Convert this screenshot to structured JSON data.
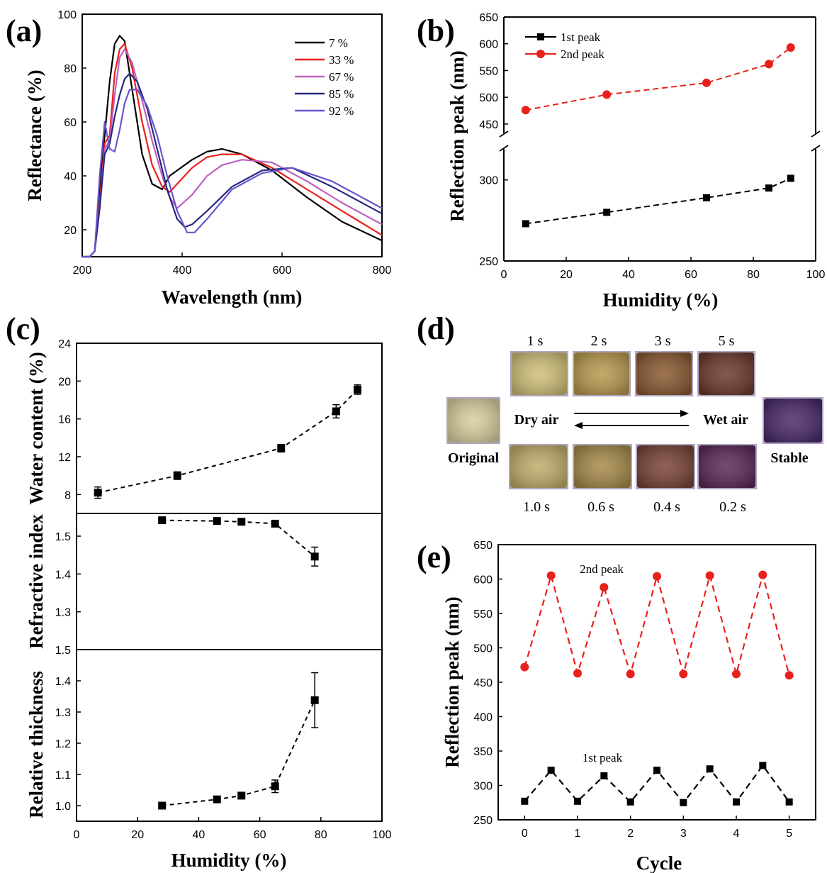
{
  "labels": {
    "a": "(a)",
    "b": "(b)",
    "c": "(c)",
    "d": "(d)",
    "e": "(e)"
  },
  "chart_data": [
    {
      "id": "a",
      "type": "line",
      "xlabel": "Wavelength (nm)",
      "ylabel": "Reflectance (%)",
      "xlim": [
        200,
        800
      ],
      "ylim": [
        10,
        100
      ],
      "xticks": [
        200,
        400,
        600,
        800
      ],
      "yticks": [
        20,
        40,
        60,
        80,
        100
      ],
      "legend_position": "top-right",
      "series": [
        {
          "name": "7 %",
          "color": "#000000",
          "x": [
            200,
            215,
            225,
            235,
            245,
            255,
            265,
            275,
            285,
            300,
            320,
            340,
            360,
            375,
            390,
            420,
            450,
            480,
            520,
            580,
            650,
            720,
            800
          ],
          "y": [
            10,
            10,
            12,
            35,
            55,
            75,
            89,
            92,
            90,
            72,
            48,
            37,
            35,
            40,
            42,
            46,
            49,
            50,
            48,
            42,
            32,
            23,
            16
          ]
        },
        {
          "name": "33 %",
          "color": "#e8211c",
          "x": [
            200,
            215,
            225,
            235,
            245,
            255,
            265,
            275,
            285,
            300,
            320,
            340,
            360,
            375,
            390,
            420,
            450,
            480,
            520,
            580,
            650,
            720,
            800
          ],
          "y": [
            10,
            10,
            12,
            30,
            52,
            55,
            78,
            87,
            89,
            80,
            60,
            44,
            36,
            34,
            37,
            43,
            47,
            48,
            48,
            43,
            35,
            27,
            18
          ]
        },
        {
          "name": "67 %",
          "color": "#c060c0",
          "x": [
            200,
            215,
            225,
            235,
            245,
            255,
            265,
            275,
            285,
            300,
            320,
            340,
            360,
            375,
            390,
            420,
            450,
            480,
            520,
            580,
            650,
            720,
            800
          ],
          "y": [
            10,
            10,
            12,
            28,
            50,
            53,
            70,
            84,
            87,
            82,
            68,
            53,
            40,
            32,
            28,
            33,
            40,
            44,
            46,
            45,
            38,
            30,
            22
          ]
        },
        {
          "name": "85 %",
          "color": "#232a80",
          "x": [
            200,
            215,
            225,
            235,
            245,
            255,
            265,
            275,
            285,
            295,
            310,
            330,
            350,
            370,
            390,
            405,
            420,
            450,
            500,
            560,
            620,
            700,
            800
          ],
          "y": [
            10,
            10,
            12,
            28,
            48,
            52,
            62,
            70,
            76,
            78,
            75,
            65,
            50,
            35,
            24,
            21,
            22,
            27,
            36,
            42,
            43,
            36,
            26
          ]
        },
        {
          "name": "92 %",
          "color": "#6a55c8",
          "x": [
            200,
            215,
            225,
            235,
            245,
            255,
            265,
            275,
            285,
            295,
            310,
            330,
            350,
            370,
            390,
            410,
            425,
            450,
            500,
            560,
            620,
            700,
            800
          ],
          "y": [
            10,
            10,
            12,
            40,
            60,
            50,
            49,
            57,
            67,
            72,
            72,
            66,
            55,
            40,
            27,
            19,
            19,
            24,
            35,
            41,
            43,
            38,
            28
          ]
        }
      ]
    },
    {
      "id": "b",
      "type": "line",
      "xlabel": "Humidity (%)",
      "ylabel": "Reflection peak (nm)",
      "xlim": [
        0,
        100
      ],
      "xticks": [
        0,
        20,
        40,
        60,
        80,
        100
      ],
      "ylim_lower": [
        250,
        320
      ],
      "yticks_lower": [
        250,
        300
      ],
      "ylim_upper": [
        430,
        650
      ],
      "yticks_upper": [
        450,
        500,
        550,
        600,
        650
      ],
      "legend_position": "top-left",
      "series": [
        {
          "name": "1st peak",
          "color": "#000000",
          "marker": "square",
          "x": [
            7,
            33,
            65,
            85,
            92
          ],
          "y": [
            273,
            280,
            289,
            295,
            301
          ]
        },
        {
          "name": "2nd peak",
          "color": "#e8211c",
          "marker": "circle",
          "x": [
            7,
            33,
            65,
            85,
            92
          ],
          "y": [
            476,
            505,
            527,
            562,
            593
          ]
        }
      ]
    },
    {
      "id": "c",
      "type": "scatter",
      "xlabel": "Humidity (%)",
      "xlim": [
        0,
        100
      ],
      "xticks": [
        0,
        20,
        40,
        60,
        80,
        100
      ],
      "subplots": [
        {
          "ylabel": "Water content (%)",
          "ylim": [
            6,
            24
          ],
          "yticks": [
            8,
            12,
            16,
            20,
            24
          ],
          "x": [
            7,
            33,
            67,
            85,
            92
          ],
          "y": [
            8.2,
            10.0,
            12.9,
            16.8,
            19.1
          ],
          "err": [
            0.6,
            0.4,
            0.4,
            0.7,
            0.5
          ]
        },
        {
          "ylabel": "Refractive index",
          "ylim": [
            1.2,
            1.56
          ],
          "yticks": [
            1.3,
            1.4,
            1.5
          ],
          "x": [
            28,
            46,
            54,
            65,
            78
          ],
          "y": [
            1.542,
            1.54,
            1.538,
            1.533,
            1.446
          ],
          "err": [
            0,
            0,
            0,
            0,
            0.025
          ]
        },
        {
          "ylabel": "Relative thickness",
          "ylim": [
            0.95,
            1.5
          ],
          "yticks": [
            1.0,
            1.1,
            1.2,
            1.3,
            1.4,
            1.5
          ],
          "x": [
            28,
            46,
            54,
            65,
            78
          ],
          "y": [
            1.0,
            1.02,
            1.032,
            1.062,
            1.338
          ],
          "err": [
            0,
            0,
            0,
            0.02,
            0.088
          ]
        }
      ]
    },
    {
      "id": "e",
      "type": "line",
      "xlabel": "Cycle",
      "ylabel": "Reflection peak (nm)",
      "xlim": [
        -0.5,
        5.5
      ],
      "ylim": [
        250,
        650
      ],
      "xticks": [
        0,
        1,
        2,
        3,
        4,
        5
      ],
      "yticks": [
        250,
        300,
        350,
        400,
        450,
        500,
        550,
        600,
        650
      ],
      "annotations": [
        "2nd peak",
        "1st peak"
      ],
      "series": [
        {
          "name": "2nd peak",
          "color": "#e8211c",
          "marker": "circle",
          "x": [
            0,
            0.5,
            1,
            1.5,
            2,
            2.5,
            3,
            3.5,
            4,
            4.5,
            5
          ],
          "y": [
            472,
            605,
            463,
            588,
            462,
            604,
            462,
            605,
            462,
            606,
            460
          ]
        },
        {
          "name": "1st peak",
          "color": "#000000",
          "marker": "square",
          "x": [
            0,
            0.5,
            1,
            1.5,
            2,
            2.5,
            3,
            3.5,
            4,
            4.5,
            5
          ],
          "y": [
            277,
            322,
            277,
            314,
            276,
            322,
            275,
            324,
            276,
            329,
            276
          ]
        }
      ]
    }
  ],
  "panel_d": {
    "top_times": [
      "1 s",
      "2 s",
      "3 s",
      "5 s"
    ],
    "bottom_times": [
      "1.0 s",
      "0.6 s",
      "0.4 s",
      "0.2 s"
    ],
    "left_label": "Original",
    "right_label": "Stable",
    "forward_label": "Wet air",
    "backward_label": "Dry air",
    "top_colors": [
      "#cfc07a",
      "#b89a50",
      "#8a5a32",
      "#6e3a2e"
    ],
    "bottom_colors": [
      "#bfae6c",
      "#a68a4a",
      "#7a4438",
      "#5a2a58"
    ],
    "original_color": "#d8d0a0",
    "stable_color": "#4a2a6a"
  }
}
